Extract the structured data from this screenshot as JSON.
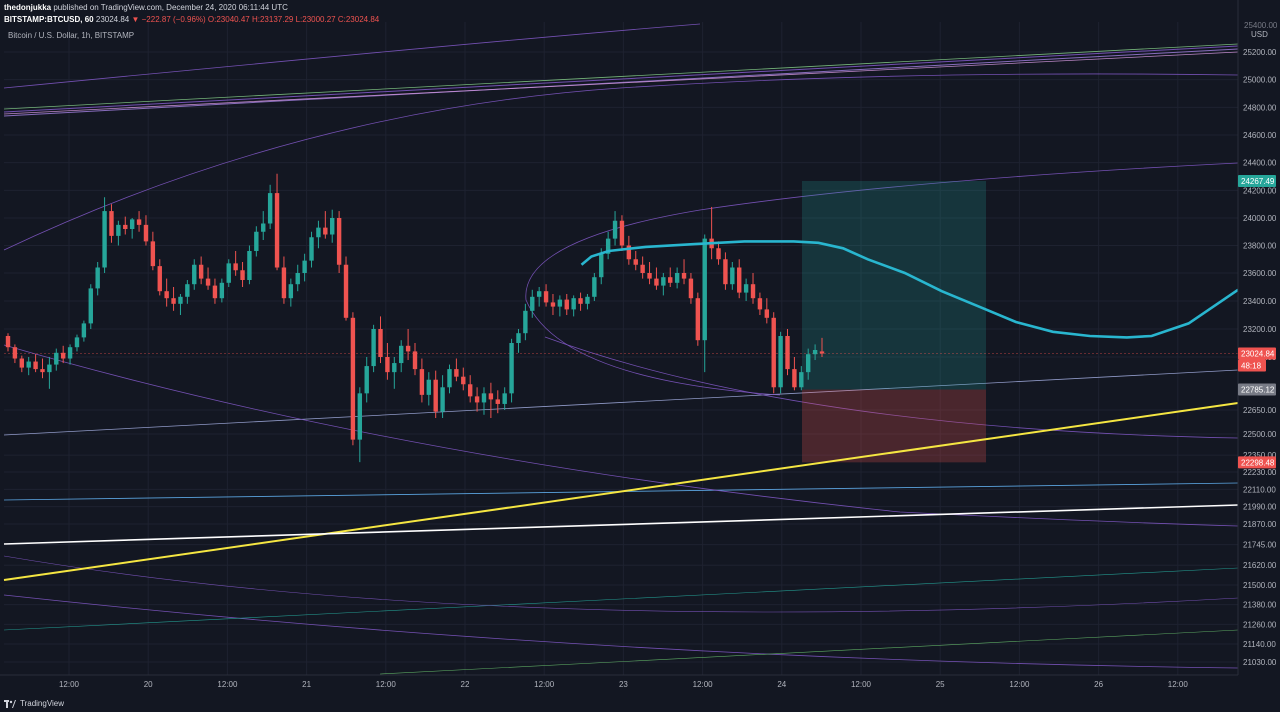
{
  "header": {
    "publisher": "thedonjukka",
    "published_text": "published on TradingView.com, December 24, 2020 06:11:44 UTC",
    "symbol": "BITSTAMP:BTCUSD, 60",
    "last": "23024.84",
    "change": "▼ −222.87 (−0.96%)",
    "o_label": "O:",
    "o": "23040.47",
    "h_label": "H:",
    "h": "23137.29",
    "l_label": "L:",
    "l": "23000.27",
    "c_label": "C:",
    "c": "23024.84"
  },
  "chart_title": "Bitcoin / U.S. Dollar, 1h, BITSTAMP",
  "footer": {
    "brand": "TradingView"
  },
  "colors": {
    "background": "#131722",
    "up": "#26a69a",
    "down": "#ef5350",
    "ma": "#29b6cf",
    "trend_yellow": "#f5e642",
    "trend_white": "#ffffff",
    "channel": "#7e57c2"
  },
  "chart_data": {
    "type": "candlestick",
    "title": "Bitcoin / U.S. Dollar, 1h, BITSTAMP",
    "currency": "USD",
    "y_axis_ticks": [
      25200,
      25000,
      24800,
      24600,
      24400,
      24200,
      24000,
      23800,
      23600,
      23400,
      23200,
      23000,
      22650,
      22500,
      22350,
      22230,
      22110,
      21990,
      21870,
      21745,
      21620,
      21500,
      21380,
      21260,
      21140,
      21030
    ],
    "x_axis_ticks": [
      "12:00",
      "20",
      "12:00",
      "21",
      "12:00",
      "22",
      "12:00",
      "23",
      "12:00",
      "24",
      "12:00",
      "25",
      "12:00",
      "26",
      "12:00"
    ],
    "price_labels": [
      {
        "value": "24267.49",
        "role": "take-profit",
        "color": "#26a69a"
      },
      {
        "value": "23024.84",
        "role": "last-price",
        "color": "#ef5350"
      },
      {
        "value": "48:18",
        "role": "countdown",
        "color": "#ef5350"
      },
      {
        "value": "22785.12",
        "role": "entry",
        "color": "#787b86"
      },
      {
        "value": "22298.48",
        "role": "stop-loss",
        "color": "#ef5350"
      }
    ],
    "position": {
      "entry": 22785.12,
      "take_profit": 24267.49,
      "stop_loss": 22298.48
    },
    "candles": [
      [
        23150,
        23170,
        23040,
        23070
      ],
      [
        23070,
        23090,
        22960,
        22990
      ],
      [
        22990,
        23010,
        22900,
        22930
      ],
      [
        22930,
        23000,
        22880,
        22970
      ],
      [
        22970,
        23020,
        22900,
        22920
      ],
      [
        22920,
        22990,
        22860,
        22900
      ],
      [
        22900,
        23000,
        22790,
        22950
      ],
      [
        22950,
        23060,
        22910,
        23030
      ],
      [
        23030,
        23080,
        22960,
        22990
      ],
      [
        22990,
        23090,
        22950,
        23070
      ],
      [
        23070,
        23160,
        23040,
        23140
      ],
      [
        23140,
        23260,
        23110,
        23240
      ],
      [
        23240,
        23520,
        23200,
        23490
      ],
      [
        23490,
        23680,
        23440,
        23640
      ],
      [
        23640,
        24150,
        23600,
        24050
      ],
      [
        24050,
        24100,
        23820,
        23870
      ],
      [
        23870,
        23980,
        23800,
        23950
      ],
      [
        23950,
        24010,
        23880,
        23920
      ],
      [
        23920,
        24000,
        23850,
        23990
      ],
      [
        23990,
        24050,
        23900,
        23950
      ],
      [
        23950,
        24020,
        23800,
        23830
      ],
      [
        23830,
        23900,
        23620,
        23650
      ],
      [
        23650,
        23700,
        23440,
        23470
      ],
      [
        23470,
        23560,
        23360,
        23420
      ],
      [
        23420,
        23500,
        23330,
        23380
      ],
      [
        23380,
        23450,
        23300,
        23430
      ],
      [
        23430,
        23550,
        23380,
        23520
      ],
      [
        23520,
        23700,
        23480,
        23660
      ],
      [
        23660,
        23720,
        23520,
        23560
      ],
      [
        23560,
        23640,
        23480,
        23510
      ],
      [
        23510,
        23560,
        23380,
        23420
      ],
      [
        23420,
        23560,
        23390,
        23530
      ],
      [
        23530,
        23700,
        23500,
        23670
      ],
      [
        23670,
        23760,
        23580,
        23620
      ],
      [
        23620,
        23680,
        23500,
        23550
      ],
      [
        23550,
        23800,
        23520,
        23760
      ],
      [
        23760,
        23940,
        23720,
        23900
      ],
      [
        23900,
        24050,
        23840,
        23960
      ],
      [
        23960,
        24240,
        23920,
        24180
      ],
      [
        24180,
        24320,
        23620,
        23640
      ],
      [
        23640,
        23720,
        23380,
        23420
      ],
      [
        23420,
        23560,
        23360,
        23520
      ],
      [
        23520,
        23660,
        23470,
        23600
      ],
      [
        23600,
        23740,
        23540,
        23690
      ],
      [
        23690,
        23900,
        23640,
        23860
      ],
      [
        23860,
        23980,
        23780,
        23930
      ],
      [
        23930,
        24050,
        23850,
        23880
      ],
      [
        23880,
        24060,
        23820,
        24000
      ],
      [
        24000,
        24050,
        23600,
        23660
      ],
      [
        23660,
        23720,
        23260,
        23280
      ],
      [
        23280,
        23320,
        22420,
        22460
      ],
      [
        22460,
        22800,
        22300,
        22760
      ],
      [
        22760,
        23000,
        22700,
        22940
      ],
      [
        22940,
        23230,
        22900,
        23200
      ],
      [
        23200,
        23290,
        22960,
        23000
      ],
      [
        23000,
        23100,
        22850,
        22900
      ],
      [
        22900,
        23000,
        22790,
        22960
      ],
      [
        22960,
        23120,
        22900,
        23080
      ],
      [
        23080,
        23200,
        22980,
        23040
      ],
      [
        23040,
        23100,
        22880,
        22920
      ],
      [
        22920,
        22990,
        22700,
        22750
      ],
      [
        22750,
        22900,
        22680,
        22850
      ],
      [
        22850,
        22910,
        22600,
        22640
      ],
      [
        22640,
        22880,
        22600,
        22800
      ],
      [
        22800,
        22950,
        22760,
        22920
      ],
      [
        22920,
        22990,
        22840,
        22870
      ],
      [
        22870,
        22930,
        22780,
        22820
      ],
      [
        22820,
        22880,
        22700,
        22740
      ],
      [
        22740,
        22800,
        22640,
        22700
      ],
      [
        22700,
        22800,
        22620,
        22760
      ],
      [
        22760,
        22830,
        22600,
        22720
      ],
      [
        22720,
        22780,
        22630,
        22690
      ],
      [
        22690,
        22800,
        22650,
        22760
      ],
      [
        22760,
        23130,
        22700,
        23100
      ],
      [
        23100,
        23200,
        23030,
        23170
      ],
      [
        23170,
        23380,
        23120,
        23330
      ],
      [
        23330,
        23480,
        23280,
        23430
      ],
      [
        23430,
        23500,
        23360,
        23470
      ],
      [
        23470,
        23520,
        23360,
        23390
      ],
      [
        23390,
        23450,
        23300,
        23360
      ],
      [
        23360,
        23440,
        23290,
        23410
      ],
      [
        23410,
        23450,
        23300,
        23340
      ],
      [
        23340,
        23440,
        23290,
        23420
      ],
      [
        23420,
        23460,
        23330,
        23380
      ],
      [
        23380,
        23450,
        23340,
        23430
      ],
      [
        23430,
        23600,
        23400,
        23570
      ],
      [
        23570,
        23780,
        23520,
        23740
      ],
      [
        23740,
        23900,
        23700,
        23850
      ],
      [
        23850,
        24050,
        23800,
        23980
      ],
      [
        23980,
        24020,
        23760,
        23800
      ],
      [
        23800,
        23870,
        23660,
        23700
      ],
      [
        23700,
        23760,
        23620,
        23660
      ],
      [
        23660,
        23720,
        23560,
        23600
      ],
      [
        23600,
        23680,
        23520,
        23560
      ],
      [
        23560,
        23640,
        23480,
        23510
      ],
      [
        23510,
        23600,
        23440,
        23570
      ],
      [
        23570,
        23640,
        23500,
        23530
      ],
      [
        23530,
        23640,
        23490,
        23600
      ],
      [
        23600,
        23700,
        23520,
        23560
      ],
      [
        23560,
        23600,
        23380,
        23420
      ],
      [
        23420,
        23460,
        23080,
        23120
      ],
      [
        23120,
        23880,
        22900,
        23850
      ],
      [
        23850,
        24080,
        23700,
        23780
      ],
      [
        23780,
        23830,
        23660,
        23700
      ],
      [
        23700,
        23750,
        23480,
        23520
      ],
      [
        23520,
        23680,
        23480,
        23640
      ],
      [
        23640,
        23700,
        23420,
        23460
      ],
      [
        23460,
        23560,
        23400,
        23520
      ],
      [
        23520,
        23600,
        23380,
        23420
      ],
      [
        23420,
        23460,
        23300,
        23340
      ],
      [
        23340,
        23420,
        23240,
        23280
      ],
      [
        23280,
        23320,
        22760,
        22800
      ],
      [
        22800,
        23180,
        22760,
        23150
      ],
      [
        23150,
        23200,
        22880,
        22920
      ],
      [
        22920,
        23000,
        22780,
        22800
      ],
      [
        22800,
        22940,
        22780,
        22900
      ],
      [
        22900,
        23060,
        22850,
        23020
      ],
      [
        23020,
        23090,
        22980,
        23050
      ],
      [
        23040,
        23137,
        23000,
        23025
      ]
    ],
    "moving_average": [
      [
        0.468,
        23660
      ],
      [
        0.476,
        23720
      ],
      [
        0.49,
        23760
      ],
      [
        0.52,
        23790
      ],
      [
        0.56,
        23810
      ],
      [
        0.6,
        23830
      ],
      [
        0.64,
        23830
      ],
      [
        0.66,
        23820
      ],
      [
        0.68,
        23780
      ],
      [
        0.7,
        23700
      ],
      [
        0.73,
        23600
      ],
      [
        0.76,
        23470
      ],
      [
        0.79,
        23360
      ],
      [
        0.82,
        23250
      ],
      [
        0.85,
        23180
      ],
      [
        0.88,
        23150
      ],
      [
        0.91,
        23140
      ],
      [
        0.93,
        23150
      ],
      [
        0.96,
        23240
      ],
      [
        0.99,
        23420
      ],
      [
        1.0,
        23480
      ]
    ]
  }
}
